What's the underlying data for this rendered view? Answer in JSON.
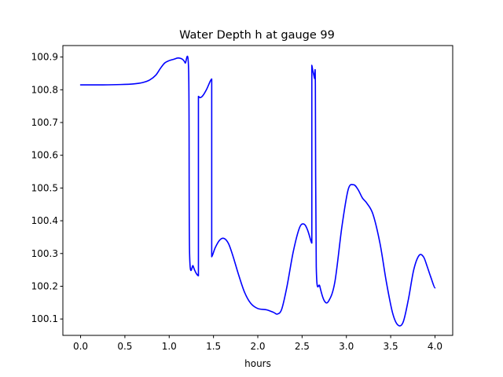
{
  "chart_data": {
    "type": "line",
    "title": "Water Depth h at gauge 99",
    "xlabel": "hours",
    "ylabel": "",
    "xlim": [
      -0.2,
      4.2
    ],
    "ylim": [
      100.05,
      100.935
    ],
    "grid": false,
    "legend": "none",
    "x_ticks": [
      {
        "value": 0.0,
        "label": "0.0"
      },
      {
        "value": 0.5,
        "label": "0.5"
      },
      {
        "value": 1.0,
        "label": "1.0"
      },
      {
        "value": 1.5,
        "label": "1.5"
      },
      {
        "value": 2.0,
        "label": "2.0"
      },
      {
        "value": 2.5,
        "label": "2.5"
      },
      {
        "value": 3.0,
        "label": "3.0"
      },
      {
        "value": 3.5,
        "label": "3.5"
      },
      {
        "value": 4.0,
        "label": "4.0"
      }
    ],
    "y_ticks": [
      {
        "value": 100.1,
        "label": "100.1"
      },
      {
        "value": 100.2,
        "label": "100.2"
      },
      {
        "value": 100.3,
        "label": "100.3"
      },
      {
        "value": 100.4,
        "label": "100.4"
      },
      {
        "value": 100.5,
        "label": "100.5"
      },
      {
        "value": 100.6,
        "label": "100.6"
      },
      {
        "value": 100.7,
        "label": "100.7"
      },
      {
        "value": 100.8,
        "label": "100.8"
      },
      {
        "value": 100.9,
        "label": "100.9"
      }
    ],
    "series": [
      {
        "color": "#0000ff",
        "x": [
          0.0,
          0.25,
          0.45,
          0.6,
          0.7,
          0.78,
          0.85,
          0.9,
          0.95,
          1.0,
          1.05,
          1.1,
          1.15,
          1.18,
          1.22,
          1.23,
          1.27,
          1.3,
          1.33,
          1.33,
          1.35,
          1.38,
          1.42,
          1.48,
          1.48,
          1.52,
          1.57,
          1.62,
          1.67,
          1.72,
          1.78,
          1.85,
          1.92,
          2.0,
          2.1,
          2.18,
          2.22,
          2.27,
          2.33,
          2.4,
          2.47,
          2.52,
          2.56,
          2.6,
          2.61,
          2.61,
          2.62,
          2.64,
          2.65,
          2.66,
          2.7,
          2.75,
          2.8,
          2.87,
          2.95,
          3.02,
          3.08,
          3.13,
          3.18,
          3.23,
          3.3,
          3.38,
          3.45,
          3.52,
          3.58,
          3.64,
          3.7,
          3.76,
          3.82,
          3.87,
          3.91,
          3.95,
          4.0
        ],
        "y": [
          100.815,
          100.815,
          100.816,
          100.818,
          100.822,
          100.83,
          100.845,
          100.865,
          100.882,
          100.889,
          100.893,
          100.897,
          100.893,
          100.882,
          100.852,
          100.302,
          100.262,
          100.242,
          100.232,
          100.78,
          100.776,
          100.782,
          100.8,
          100.833,
          100.29,
          100.318,
          100.341,
          100.346,
          100.33,
          100.292,
          100.238,
          100.182,
          100.148,
          100.132,
          100.128,
          100.12,
          100.115,
          100.13,
          100.2,
          100.305,
          100.378,
          100.39,
          100.373,
          100.338,
          100.332,
          100.875,
          100.86,
          100.835,
          100.815,
          100.26,
          100.2,
          100.156,
          100.155,
          100.213,
          100.383,
          100.495,
          100.51,
          100.496,
          100.47,
          100.454,
          100.42,
          100.33,
          100.215,
          100.12,
          100.082,
          100.09,
          100.16,
          100.25,
          100.294,
          100.29,
          100.262,
          100.23,
          100.195
        ]
      }
    ]
  }
}
